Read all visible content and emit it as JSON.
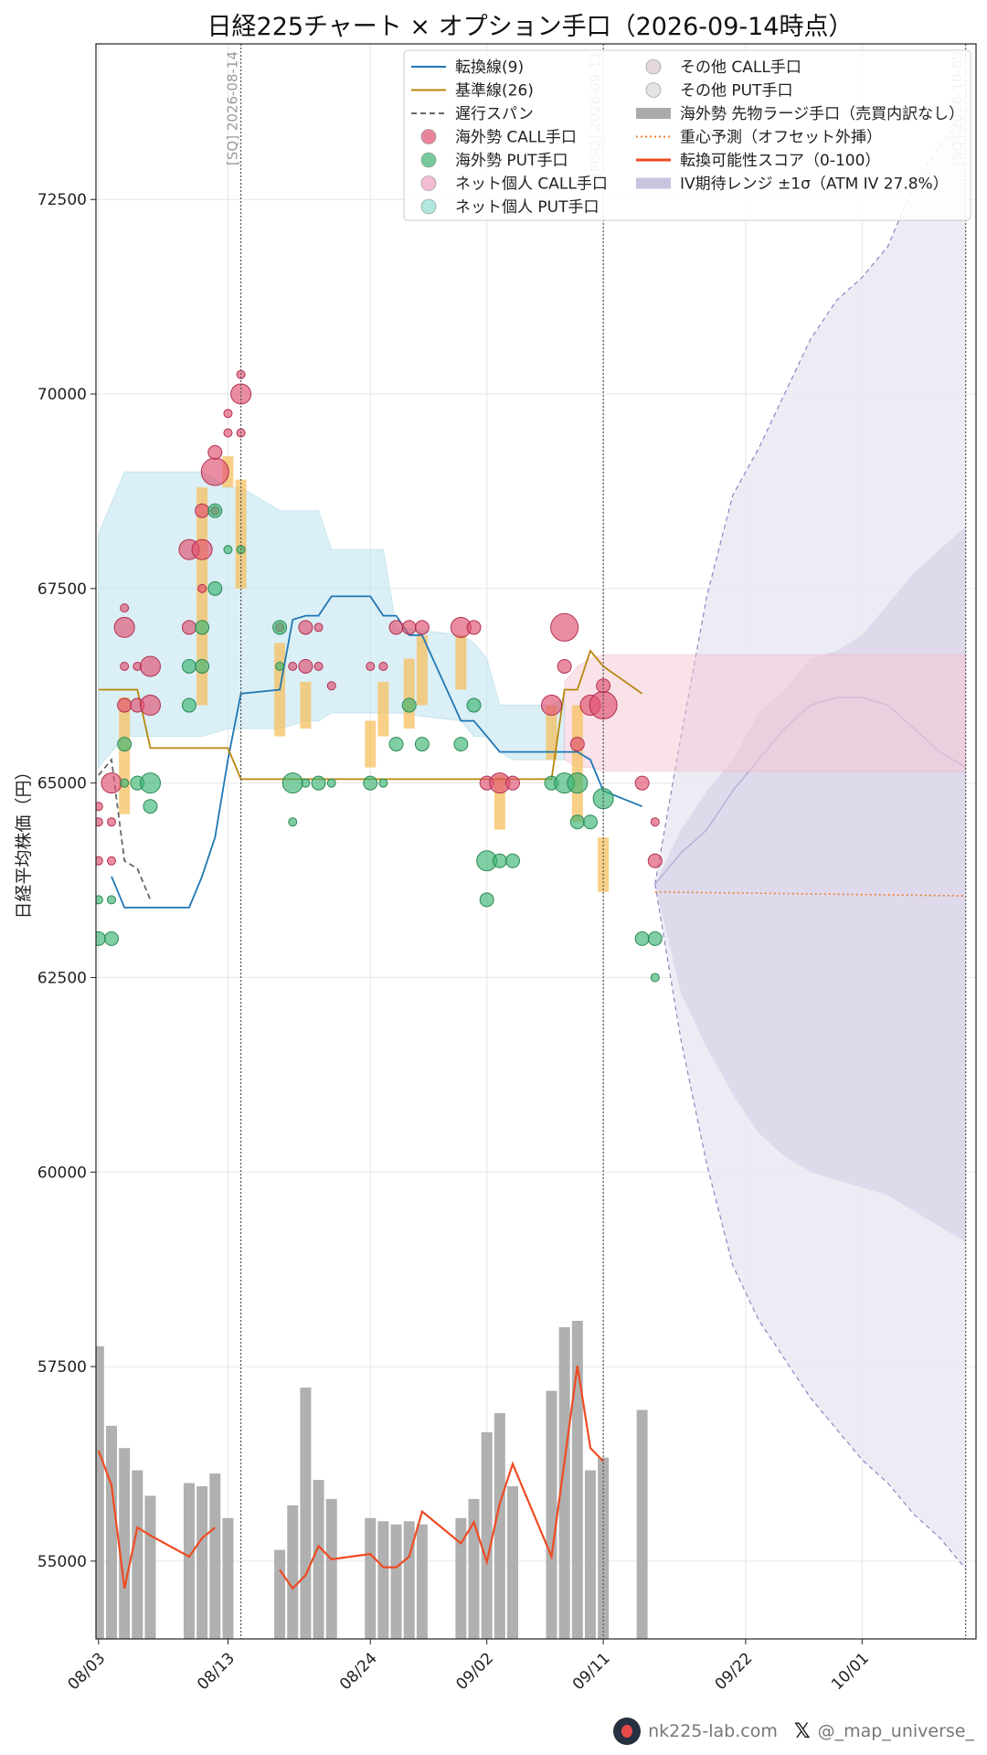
{
  "chart_data": {
    "type": "line",
    "title": "日経225チャート × オプション手口（2026-09-14時点）",
    "ylabel": "日経平均株価（円）",
    "xlabel": "",
    "ylim": [
      54000,
      74500
    ],
    "yticks": [
      55000,
      57500,
      60000,
      62500,
      65000,
      67500,
      70000,
      72500
    ],
    "x_range": [
      "2026-08-03",
      "2026-10-09"
    ],
    "x_ticks": [
      {
        "date": "2026-08-03",
        "label": "08/03"
      },
      {
        "date": "2026-08-13",
        "label": "08/13"
      },
      {
        "date": "2026-08-24",
        "label": "08/24"
      },
      {
        "date": "2026-09-02",
        "label": "09/02"
      },
      {
        "date": "2026-09-11",
        "label": "09/11"
      },
      {
        "date": "2026-09-22",
        "label": "09/22"
      },
      {
        "date": "2026-10-01",
        "label": "10/01"
      }
    ],
    "grid": true,
    "legend_placement": "top-center",
    "vlines": [
      {
        "date": "2026-08-14",
        "label": "[SQ] 2026-08-14"
      },
      {
        "date": "2026-09-11",
        "label": "[MSQ] 2026-09-11"
      },
      {
        "date": "2026-10-09",
        "label": "[SQ] 2026-10-09"
      }
    ],
    "series": [
      {
        "name": "転換線(9)",
        "color": "#1f77b4",
        "style": "solid",
        "x": [
          "2026-08-04",
          "2026-08-05",
          "2026-08-06",
          "2026-08-07",
          "2026-08-10",
          "2026-08-11",
          "2026-08-12",
          "2026-08-13",
          "2026-08-14",
          "2026-08-17",
          "2026-08-18",
          "2026-08-19",
          "2026-08-20",
          "2026-08-21",
          "2026-08-24",
          "2026-08-25",
          "2026-08-26",
          "2026-08-27",
          "2026-08-28",
          "2026-08-31",
          "2026-09-01",
          "2026-09-02",
          "2026-09-03",
          "2026-09-04",
          "2026-09-07",
          "2026-09-08",
          "2026-09-09",
          "2026-09-10",
          "2026-09-11",
          "2026-09-14"
        ],
        "y": [
          63800,
          63400,
          63400,
          63400,
          63400,
          63800,
          64300,
          65300,
          66150,
          66200,
          67100,
          67150,
          67150,
          67400,
          67400,
          67150,
          67150,
          66900,
          66900,
          65800,
          65800,
          65600,
          65400,
          65400,
          65400,
          65400,
          65400,
          65300,
          64900,
          64700
        ]
      },
      {
        "name": "基準線(26)",
        "color": "#b8860b",
        "style": "solid",
        "x": [
          "2026-08-03",
          "2026-08-05",
          "2026-08-06",
          "2026-08-07",
          "2026-08-10",
          "2026-08-11",
          "2026-08-12",
          "2026-08-13",
          "2026-08-14",
          "2026-08-21",
          "2026-08-31",
          "2026-09-02",
          "2026-09-04",
          "2026-09-07",
          "2026-09-08",
          "2026-09-09",
          "2026-09-10",
          "2026-09-11",
          "2026-09-14"
        ],
        "y": [
          66200,
          66200,
          66200,
          65450,
          65450,
          65450,
          65450,
          65450,
          65050,
          65050,
          65050,
          65050,
          65050,
          65050,
          66200,
          66200,
          66700,
          66500,
          66150
        ]
      },
      {
        "name": "遅行スパン",
        "color": "#666666",
        "style": "dashed",
        "x": [
          "2026-08-03",
          "2026-08-04",
          "2026-08-05",
          "2026-08-06",
          "2026-08-07"
        ],
        "y": [
          65100,
          65300,
          64000,
          63900,
          63500
        ]
      }
    ],
    "option_flows": [
      {
        "name": "海外勢 CALL手口",
        "color": "#e05070",
        "points": [
          {
            "x": "2026-08-03",
            "y": 64700,
            "s": 1
          },
          {
            "x": "2026-08-03",
            "y": 64500,
            "s": 1
          },
          {
            "x": "2026-08-03",
            "y": 64000,
            "s": 1
          },
          {
            "x": "2026-08-04",
            "y": 65000,
            "s": 3
          },
          {
            "x": "2026-08-04",
            "y": 64500,
            "s": 1
          },
          {
            "x": "2026-08-04",
            "y": 64000,
            "s": 1
          },
          {
            "x": "2026-08-05",
            "y": 67000,
            "s": 3
          },
          {
            "x": "2026-08-05",
            "y": 66500,
            "s": 1
          },
          {
            "x": "2026-08-05",
            "y": 66000,
            "s": 2
          },
          {
            "x": "2026-08-05",
            "y": 67250,
            "s": 1
          },
          {
            "x": "2026-08-06",
            "y": 66000,
            "s": 2
          },
          {
            "x": "2026-08-06",
            "y": 66500,
            "s": 1
          },
          {
            "x": "2026-08-07",
            "y": 66500,
            "s": 3
          },
          {
            "x": "2026-08-07",
            "y": 66000,
            "s": 3
          },
          {
            "x": "2026-08-10",
            "y": 68000,
            "s": 3
          },
          {
            "x": "2026-08-10",
            "y": 67000,
            "s": 2
          },
          {
            "x": "2026-08-11",
            "y": 68500,
            "s": 2
          },
          {
            "x": "2026-08-11",
            "y": 68000,
            "s": 3
          },
          {
            "x": "2026-08-11",
            "y": 67500,
            "s": 1
          },
          {
            "x": "2026-08-12",
            "y": 69000,
            "s": 4
          },
          {
            "x": "2026-08-12",
            "y": 69250,
            "s": 2
          },
          {
            "x": "2026-08-12",
            "y": 68500,
            "s": 1
          },
          {
            "x": "2026-08-13",
            "y": 69500,
            "s": 1
          },
          {
            "x": "2026-08-13",
            "y": 69750,
            "s": 1
          },
          {
            "x": "2026-08-14",
            "y": 70000,
            "s": 3
          },
          {
            "x": "2026-08-14",
            "y": 70250,
            "s": 1
          },
          {
            "x": "2026-08-14",
            "y": 69500,
            "s": 1
          },
          {
            "x": "2026-08-17",
            "y": 67000,
            "s": 1
          },
          {
            "x": "2026-08-18",
            "y": 66500,
            "s": 1
          },
          {
            "x": "2026-08-19",
            "y": 67000,
            "s": 2
          },
          {
            "x": "2026-08-19",
            "y": 66500,
            "s": 2
          },
          {
            "x": "2026-08-20",
            "y": 67000,
            "s": 1
          },
          {
            "x": "2026-08-20",
            "y": 66500,
            "s": 1
          },
          {
            "x": "2026-08-21",
            "y": 66250,
            "s": 1
          },
          {
            "x": "2026-08-24",
            "y": 66500,
            "s": 1
          },
          {
            "x": "2026-08-25",
            "y": 66500,
            "s": 1
          },
          {
            "x": "2026-08-26",
            "y": 67000,
            "s": 2
          },
          {
            "x": "2026-08-27",
            "y": 67000,
            "s": 2
          },
          {
            "x": "2026-08-28",
            "y": 67000,
            "s": 2
          },
          {
            "x": "2026-08-31",
            "y": 67000,
            "s": 3
          },
          {
            "x": "2026-09-01",
            "y": 67000,
            "s": 2
          },
          {
            "x": "2026-09-02",
            "y": 65000,
            "s": 2
          },
          {
            "x": "2026-09-03",
            "y": 65000,
            "s": 3
          },
          {
            "x": "2026-09-04",
            "y": 65000,
            "s": 2
          },
          {
            "x": "2026-09-07",
            "y": 66000,
            "s": 3
          },
          {
            "x": "2026-09-08",
            "y": 67000,
            "s": 4
          },
          {
            "x": "2026-09-08",
            "y": 66500,
            "s": 2
          },
          {
            "x": "2026-09-09",
            "y": 65500,
            "s": 2
          },
          {
            "x": "2026-09-10",
            "y": 66000,
            "s": 3
          },
          {
            "x": "2026-09-11",
            "y": 66000,
            "s": 4
          },
          {
            "x": "2026-09-11",
            "y": 66250,
            "s": 2
          },
          {
            "x": "2026-09-14",
            "y": 65000,
            "s": 2
          },
          {
            "x": "2026-09-15",
            "y": 64500,
            "s": 1
          },
          {
            "x": "2026-09-15",
            "y": 64000,
            "s": 2
          }
        ]
      },
      {
        "name": "海外勢 PUT手口",
        "color": "#3cb371",
        "points": [
          {
            "x": "2026-08-03",
            "y": 63000,
            "s": 2
          },
          {
            "x": "2026-08-03",
            "y": 63500,
            "s": 1
          },
          {
            "x": "2026-08-04",
            "y": 63000,
            "s": 2
          },
          {
            "x": "2026-08-04",
            "y": 63500,
            "s": 1
          },
          {
            "x": "2026-08-05",
            "y": 65500,
            "s": 2
          },
          {
            "x": "2026-08-05",
            "y": 65000,
            "s": 1
          },
          {
            "x": "2026-08-06",
            "y": 65000,
            "s": 2
          },
          {
            "x": "2026-08-07",
            "y": 65000,
            "s": 3
          },
          {
            "x": "2026-08-07",
            "y": 64700,
            "s": 2
          },
          {
            "x": "2026-08-10",
            "y": 66000,
            "s": 2
          },
          {
            "x": "2026-08-10",
            "y": 66500,
            "s": 2
          },
          {
            "x": "2026-08-11",
            "y": 66500,
            "s": 2
          },
          {
            "x": "2026-08-11",
            "y": 67000,
            "s": 2
          },
          {
            "x": "2026-08-12",
            "y": 67500,
            "s": 2
          },
          {
            "x": "2026-08-12",
            "y": 68500,
            "s": 2
          },
          {
            "x": "2026-08-13",
            "y": 68000,
            "s": 1
          },
          {
            "x": "2026-08-14",
            "y": 68000,
            "s": 1
          },
          {
            "x": "2026-08-17",
            "y": 67000,
            "s": 2
          },
          {
            "x": "2026-08-17",
            "y": 66500,
            "s": 1
          },
          {
            "x": "2026-08-18",
            "y": 65000,
            "s": 3
          },
          {
            "x": "2026-08-18",
            "y": 64500,
            "s": 1
          },
          {
            "x": "2026-08-19",
            "y": 65000,
            "s": 1
          },
          {
            "x": "2026-08-20",
            "y": 65000,
            "s": 2
          },
          {
            "x": "2026-08-21",
            "y": 65000,
            "s": 1
          },
          {
            "x": "2026-08-24",
            "y": 65000,
            "s": 2
          },
          {
            "x": "2026-08-25",
            "y": 65000,
            "s": 1
          },
          {
            "x": "2026-08-26",
            "y": 65500,
            "s": 2
          },
          {
            "x": "2026-08-27",
            "y": 66000,
            "s": 2
          },
          {
            "x": "2026-08-28",
            "y": 65500,
            "s": 2
          },
          {
            "x": "2026-08-31",
            "y": 65500,
            "s": 2
          },
          {
            "x": "2026-09-01",
            "y": 66000,
            "s": 2
          },
          {
            "x": "2026-09-02",
            "y": 64000,
            "s": 3
          },
          {
            "x": "2026-09-02",
            "y": 63500,
            "s": 2
          },
          {
            "x": "2026-09-03",
            "y": 64000,
            "s": 2
          },
          {
            "x": "2026-09-04",
            "y": 64000,
            "s": 2
          },
          {
            "x": "2026-09-07",
            "y": 65000,
            "s": 2
          },
          {
            "x": "2026-09-08",
            "y": 65000,
            "s": 3
          },
          {
            "x": "2026-09-09",
            "y": 65000,
            "s": 3
          },
          {
            "x": "2026-09-09",
            "y": 64500,
            "s": 2
          },
          {
            "x": "2026-09-10",
            "y": 64500,
            "s": 2
          },
          {
            "x": "2026-09-11",
            "y": 64800,
            "s": 3
          },
          {
            "x": "2026-09-14",
            "y": 63000,
            "s": 2
          },
          {
            "x": "2026-09-15",
            "y": 63000,
            "s": 2
          },
          {
            "x": "2026-09-15",
            "y": 62500,
            "s": 1
          }
        ]
      },
      {
        "name": "ネット個人 CALL手口",
        "color": "#f0a0c0",
        "points": []
      },
      {
        "name": "ネット個人 PUT手口",
        "color": "#90e0d0",
        "points": []
      },
      {
        "name": "その他 CALL手口",
        "color": "#d8c8cc",
        "points": []
      },
      {
        "name": "その他 PUT手口",
        "color": "#d8d8d8",
        "points": []
      }
    ],
    "futures_large": {
      "name": "海外勢 先物ラージ手口（売買内訳なし）",
      "color": "#aaaaaa"
    },
    "ichimoku_cloud": {
      "x": [
        "2026-08-03",
        "2026-08-05",
        "2026-08-11",
        "2026-08-13",
        "2026-08-14",
        "2026-08-17",
        "2026-08-19",
        "2026-08-20",
        "2026-08-21",
        "2026-08-24",
        "2026-08-25",
        "2026-08-26",
        "2026-08-31",
        "2026-09-01",
        "2026-09-02",
        "2026-09-03",
        "2026-09-04",
        "2026-09-07",
        "2026-09-08"
      ],
      "upper": [
        68200,
        69000,
        69000,
        68800,
        68800,
        68500,
        68500,
        68500,
        68000,
        68000,
        68000,
        67000,
        66900,
        66800,
        66600,
        66000,
        66000,
        66000,
        66100
      ],
      "lower": [
        65200,
        65600,
        65600,
        65700,
        65700,
        65700,
        65800,
        65800,
        65900,
        65900,
        65900,
        65900,
        65800,
        65600,
        65600,
        65400,
        65300,
        65300,
        65300
      ]
    },
    "red_cloud": {
      "x": [
        "2026-09-08",
        "2026-09-09",
        "2026-09-10",
        "2026-09-11",
        "2026-09-14",
        "2026-10-09"
      ],
      "upper": [
        66300,
        66500,
        66600,
        66650,
        66650,
        66650
      ],
      "lower": [
        65300,
        65200,
        65200,
        65150,
        65150,
        65150
      ]
    },
    "center_forecast": {
      "name": "重心予測（オフセット外挿）",
      "color": "#f08030",
      "x": [
        "2026-09-15",
        "2026-10-09"
      ],
      "y": [
        63600,
        63550
      ]
    },
    "iv_range": {
      "name": "IV期待レンジ ±1σ（ATM IV 27.8%）",
      "color": "#c8c4e0",
      "x": [
        "2026-09-15",
        "2026-09-17",
        "2026-09-19",
        "2026-09-21",
        "2026-09-23",
        "2026-09-25",
        "2026-09-27",
        "2026-09-29",
        "2026-10-01",
        "2026-10-03",
        "2026-10-05",
        "2026-10-07",
        "2026-10-09"
      ],
      "upper": [
        63700,
        64400,
        64900,
        65300,
        65900,
        66200,
        66600,
        66700,
        66900,
        67300,
        67700,
        68000,
        68300
      ],
      "mid": [
        63700,
        64100,
        64400,
        64900,
        65300,
        65700,
        66000,
        66100,
        66100,
        66000,
        65700,
        65400,
        65200
      ],
      "lower": [
        63700,
        62300,
        61600,
        61000,
        60500,
        60200,
        60000,
        59900,
        59800,
        59700,
        59500,
        59300,
        59100
      ],
      "outer_upper": [
        63700,
        65600,
        67400,
        68700,
        69300,
        70000,
        70700,
        71200,
        71500,
        71900,
        72700,
        73200,
        73600
      ],
      "outer_lower": [
        63700,
        61700,
        60100,
        58800,
        58100,
        57600,
        57100,
        56700,
        56300,
        56000,
        55600,
        55300,
        54900
      ]
    },
    "score": {
      "name": "転換可能性スコア（0-100）",
      "color": "#ee4b22",
      "x": [
        "2026-08-03",
        "2026-08-04",
        "2026-08-05",
        "2026-08-06",
        "2026-08-07",
        "2026-08-10",
        "2026-08-11",
        "2026-08-12",
        "2026-08-17",
        "2026-08-18",
        "2026-08-19",
        "2026-08-20",
        "2026-08-21",
        "2026-08-24",
        "2026-08-25",
        "2026-08-26",
        "2026-08-27",
        "2026-08-28",
        "2026-08-31",
        "2026-09-01",
        "2026-09-02",
        "2026-09-03",
        "2026-09-04",
        "2026-09-07",
        "2026-09-08",
        "2026-09-09",
        "2026-09-10",
        "2026-09-11"
      ],
      "y": [
        60,
        47,
        8,
        31,
        28,
        20,
        27,
        31,
        15,
        8,
        13,
        24,
        19,
        21,
        16,
        16,
        20,
        37,
        25,
        33,
        18,
        40,
        55,
        20,
        56,
        92,
        61,
        56
      ]
    },
    "volume": {
      "name": "volume",
      "x": [
        "2026-08-03",
        "2026-08-04",
        "2026-08-05",
        "2026-08-06",
        "2026-08-07",
        "2026-08-10",
        "2026-08-11",
        "2026-08-12",
        "2026-08-13",
        "2026-08-17",
        "2026-08-18",
        "2026-08-19",
        "2026-08-20",
        "2026-08-21",
        "2026-08-24",
        "2026-08-25",
        "2026-08-26",
        "2026-08-27",
        "2026-08-28",
        "2026-08-31",
        "2026-09-01",
        "2026-09-02",
        "2026-09-03",
        "2026-09-04",
        "2026-09-07",
        "2026-09-08",
        "2026-09-09",
        "2026-09-10",
        "2026-09-11",
        "2026-09-14"
      ],
      "y": [
        92,
        67,
        60,
        53,
        45,
        49,
        48,
        52,
        38,
        28,
        42,
        79,
        50,
        44,
        38,
        37,
        36,
        37,
        36,
        38,
        44,
        65,
        71,
        48,
        78,
        98,
        100,
        53,
        57,
        72
      ]
    }
  },
  "footer": {
    "site": "nk225-lab.com",
    "x_handle": "@_map_universe_"
  }
}
